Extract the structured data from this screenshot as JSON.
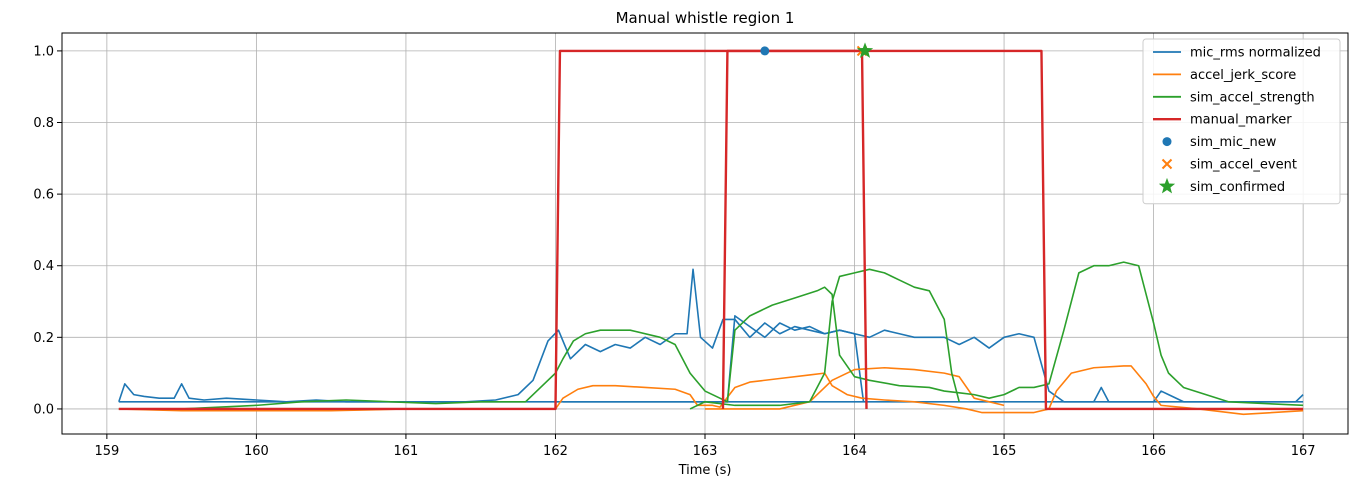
{
  "chart_data": {
    "type": "line",
    "title": "Manual whistle region 1",
    "xlabel": "Time (s)",
    "ylabel": "",
    "xlim": [
      158.7,
      167.3
    ],
    "ylim": [
      -0.07,
      1.05
    ],
    "xticks": [
      159,
      160,
      161,
      162,
      163,
      164,
      165,
      166,
      167
    ],
    "yticks": [
      0.0,
      0.2,
      0.4,
      0.6,
      0.8,
      1.0
    ],
    "xtick_labels": [
      "159",
      "160",
      "161",
      "162",
      "163",
      "164",
      "165",
      "166",
      "167"
    ],
    "ytick_labels": [
      "0.0",
      "0.2",
      "0.4",
      "0.6",
      "0.8",
      "1.0"
    ],
    "grid": true,
    "legend_position": "top-right",
    "series": [
      {
        "name": "mic_rms normalized",
        "kind": "line",
        "color": "#1f77b4",
        "x": [
          159.08,
          159.12,
          159.18,
          159.25,
          159.35,
          159.45,
          159.5,
          159.55,
          159.65,
          159.8,
          160.0,
          160.2,
          160.4,
          160.6,
          160.8,
          161.0,
          161.2,
          161.4,
          161.6,
          161.75,
          161.85,
          161.95,
          162.02,
          162.1,
          162.2,
          162.3,
          162.4,
          162.5,
          162.6,
          162.7,
          162.8,
          162.88,
          162.92,
          162.97,
          163.05,
          163.12,
          163.2,
          163.3,
          163.4,
          163.5,
          163.6,
          163.7,
          163.8,
          163.9,
          164.0,
          164.1,
          164.2,
          164.3,
          164.4,
          164.5,
          164.6,
          164.7,
          164.8,
          164.9,
          165.0,
          165.1,
          165.2,
          165.3,
          165.4,
          165.5,
          165.6,
          165.65,
          165.7,
          165.8,
          165.9,
          166.0,
          166.05,
          166.1,
          166.2,
          166.4,
          166.6,
          166.8,
          166.95,
          167.0
        ],
        "values": [
          0.02,
          0.07,
          0.04,
          0.035,
          0.03,
          0.03,
          0.07,
          0.03,
          0.025,
          0.03,
          0.025,
          0.02,
          0.025,
          0.02,
          0.02,
          0.02,
          0.02,
          0.02,
          0.025,
          0.04,
          0.08,
          0.19,
          0.22,
          0.14,
          0.18,
          0.16,
          0.18,
          0.17,
          0.2,
          0.18,
          0.21,
          0.21,
          0.39,
          0.2,
          0.17,
          0.25,
          0.25,
          0.2,
          0.24,
          0.21,
          0.23,
          0.22,
          0.21,
          0.22,
          0.21,
          0.2,
          0.22,
          0.21,
          0.2,
          0.2,
          0.2,
          0.18,
          0.2,
          0.17,
          0.2,
          0.21,
          0.2,
          0.05,
          0.02,
          0.02,
          0.02,
          0.06,
          0.02,
          0.02,
          0.02,
          0.02,
          0.05,
          0.04,
          0.02,
          0.02,
          0.02,
          0.02,
          0.02,
          0.04
        ]
      },
      {
        "name": "",
        "kind": "line",
        "color": "#1f77b4",
        "x": [
          159.08,
          160.0,
          161.0,
          162.0,
          163.0,
          164.0,
          165.0,
          166.0,
          167.0
        ],
        "values": [
          0.02,
          0.02,
          0.02,
          0.02,
          0.02,
          0.02,
          0.02,
          0.02,
          0.02
        ]
      },
      {
        "name": "",
        "kind": "line",
        "color": "#1f77b4",
        "x": [
          162.05,
          163.15,
          163.2,
          163.3,
          163.4,
          163.5,
          163.6,
          163.7,
          163.8,
          163.9,
          164.0,
          164.06
        ],
        "values": [
          0.02,
          0.02,
          0.26,
          0.23,
          0.2,
          0.24,
          0.22,
          0.23,
          0.21,
          0.22,
          0.21,
          0.02
        ]
      },
      {
        "name": "accel_jerk_score",
        "kind": "line",
        "color": "#ff7f0e",
        "x": [
          159.08,
          159.5,
          160.0,
          160.5,
          161.0,
          161.5,
          162.0,
          162.05,
          162.15,
          162.25,
          162.4,
          162.6,
          162.8,
          162.9,
          162.95,
          163.05,
          163.1,
          163.2,
          163.3,
          163.5,
          163.7,
          163.8,
          163.85,
          163.95,
          164.05,
          164.2,
          164.4,
          164.6,
          164.75,
          164.85,
          164.95,
          165.2,
          165.3,
          165.35,
          165.45,
          165.6,
          165.8,
          165.85,
          165.95,
          166.0,
          166.05,
          166.3,
          166.6,
          167.0
        ],
        "values": [
          0.0,
          -0.005,
          -0.005,
          -0.005,
          0.0,
          0.0,
          0.0,
          0.03,
          0.055,
          0.065,
          0.065,
          0.06,
          0.055,
          0.04,
          0.01,
          0.01,
          0.005,
          0.06,
          0.075,
          0.085,
          0.095,
          0.1,
          0.065,
          0.04,
          0.03,
          0.025,
          0.02,
          0.01,
          0.0,
          -0.01,
          -0.01,
          -0.01,
          0.0,
          0.05,
          0.1,
          0.115,
          0.12,
          0.12,
          0.07,
          0.035,
          0.01,
          0.0,
          -0.015,
          -0.005
        ]
      },
      {
        "name": "",
        "kind": "line",
        "color": "#ff7f0e",
        "x": [
          163.0,
          163.5,
          163.7,
          163.85,
          164.0,
          164.2,
          164.4,
          164.6,
          164.7,
          164.8,
          165.0
        ],
        "values": [
          0.0,
          0.0,
          0.02,
          0.08,
          0.11,
          0.115,
          0.11,
          0.1,
          0.09,
          0.03,
          0.01
        ]
      },
      {
        "name": "sim_accel_strength",
        "kind": "line",
        "color": "#2ca02c",
        "x": [
          159.08,
          159.5,
          160.0,
          160.3,
          160.6,
          160.9,
          161.2,
          161.5,
          161.8,
          162.0,
          162.05,
          162.12,
          162.2,
          162.3,
          162.5,
          162.7,
          162.8,
          162.9,
          163.0,
          163.1,
          163.15,
          163.2,
          163.3,
          163.45,
          163.6,
          163.75,
          163.8,
          163.85,
          163.9,
          164.0,
          164.1,
          164.3,
          164.5,
          164.6,
          164.7,
          164.8,
          164.9,
          165.0,
          165.1,
          165.2,
          165.3,
          165.4,
          165.5,
          165.6,
          165.7,
          165.8,
          165.9,
          166.0,
          166.05,
          166.1,
          166.2,
          166.5,
          167.0
        ],
        "values": [
          0.0,
          0.0,
          0.01,
          0.02,
          0.025,
          0.02,
          0.015,
          0.02,
          0.02,
          0.1,
          0.14,
          0.19,
          0.21,
          0.22,
          0.22,
          0.2,
          0.18,
          0.1,
          0.05,
          0.03,
          0.02,
          0.22,
          0.26,
          0.29,
          0.31,
          0.33,
          0.34,
          0.32,
          0.15,
          0.09,
          0.08,
          0.065,
          0.06,
          0.05,
          0.045,
          0.04,
          0.03,
          0.04,
          0.06,
          0.06,
          0.07,
          0.22,
          0.38,
          0.4,
          0.4,
          0.41,
          0.4,
          0.24,
          0.15,
          0.1,
          0.06,
          0.02,
          0.01
        ]
      },
      {
        "name": "",
        "kind": "line",
        "color": "#2ca02c",
        "x": [
          162.9,
          163.0,
          163.2,
          163.5,
          163.7,
          163.8,
          163.85,
          163.9,
          164.0,
          164.1,
          164.2,
          164.3,
          164.4,
          164.5,
          164.6,
          164.65,
          164.7
        ],
        "values": [
          0.0,
          0.02,
          0.01,
          0.01,
          0.02,
          0.1,
          0.3,
          0.37,
          0.38,
          0.39,
          0.38,
          0.36,
          0.34,
          0.33,
          0.25,
          0.1,
          0.02
        ]
      },
      {
        "name": "manual_marker",
        "kind": "line",
        "color": "#d62728",
        "x": [
          159.08,
          162.0,
          162.03,
          165.25,
          165.28,
          167.0
        ],
        "values": [
          0.0,
          0.0,
          1.0,
          1.0,
          0.0,
          0.0
        ]
      },
      {
        "name": "",
        "kind": "line",
        "color": "#d62728",
        "x": [
          163.12,
          163.15,
          164.05,
          164.08
        ],
        "values": [
          0.0,
          1.0,
          1.0,
          0.0
        ]
      },
      {
        "name": "sim_mic_new",
        "kind": "scatter",
        "marker": "circle",
        "color": "#1f77b4",
        "x": [
          163.4
        ],
        "values": [
          1.0
        ]
      },
      {
        "name": "sim_accel_event",
        "kind": "scatter",
        "marker": "x",
        "color": "#ff7f0e",
        "x": [
          164.05
        ],
        "values": [
          1.0
        ]
      },
      {
        "name": "sim_confirmed",
        "kind": "scatter",
        "marker": "star",
        "color": "#2ca02c",
        "x": [
          164.07
        ],
        "values": [
          1.0
        ]
      }
    ]
  }
}
